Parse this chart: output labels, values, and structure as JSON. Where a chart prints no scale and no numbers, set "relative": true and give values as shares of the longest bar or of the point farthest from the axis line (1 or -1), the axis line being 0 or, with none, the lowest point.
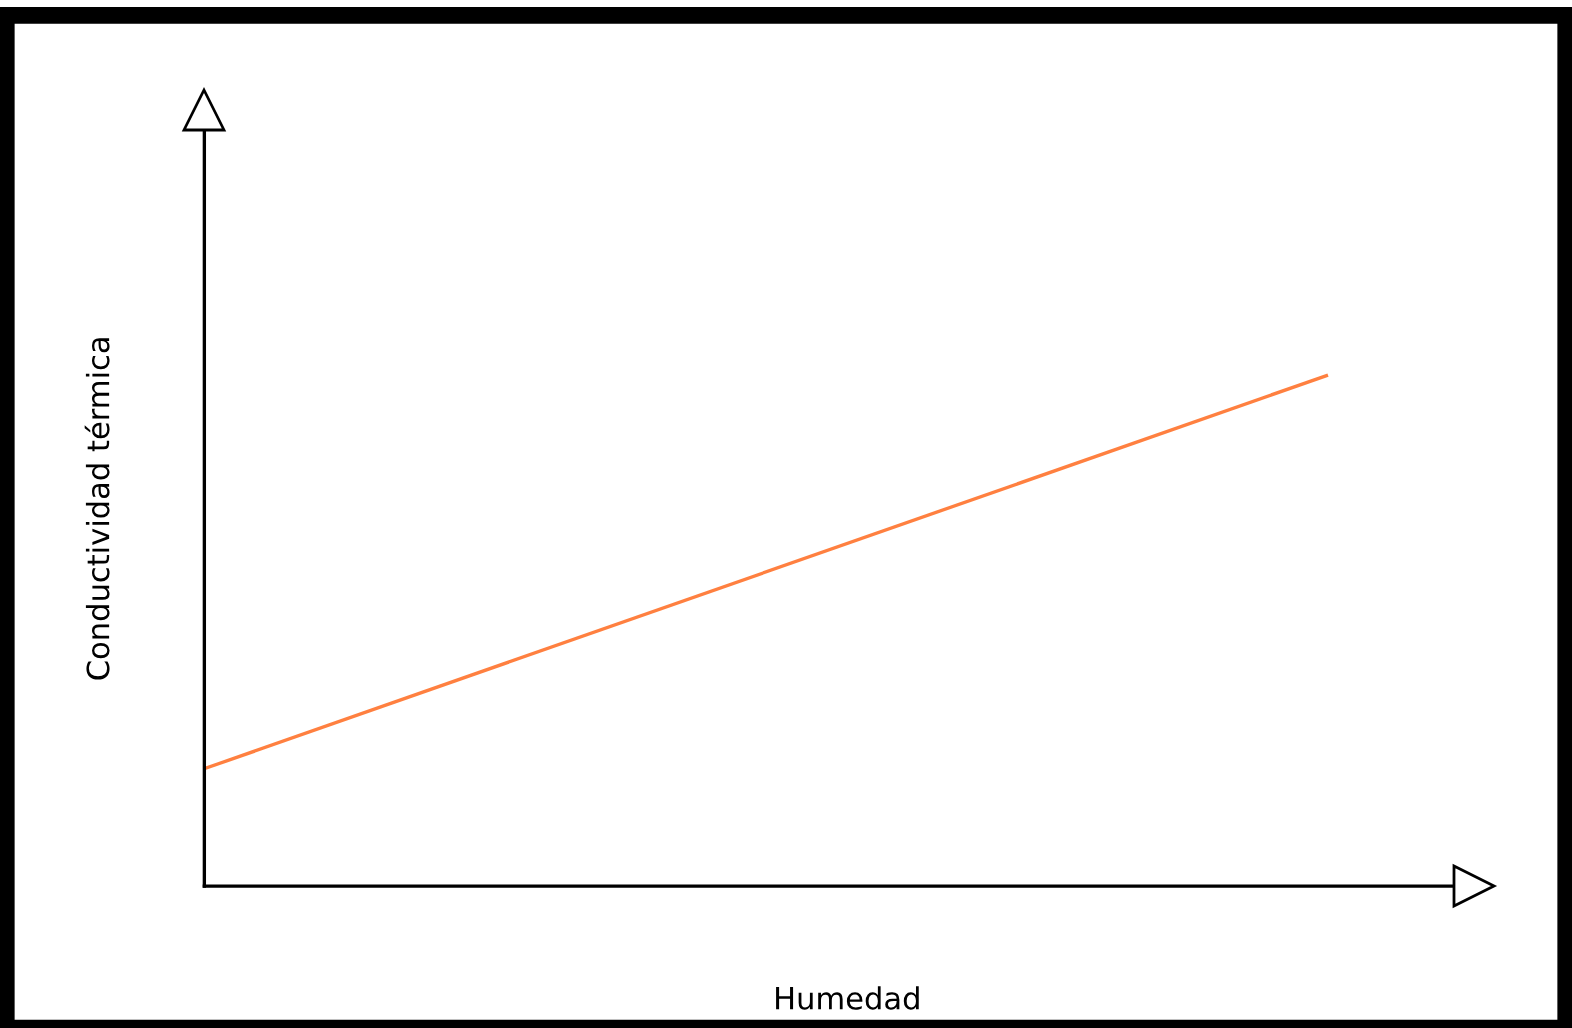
{
  "chart_data": {
    "type": "line",
    "relative": true,
    "xlabel": "Humedad",
    "ylabel": "Conductividad térmica",
    "categories": [
      null,
      null
    ],
    "series": [
      {
        "color": "#ff8040",
        "values": [
          0.23,
          1
        ]
      }
    ],
    "tick_labels": false,
    "marker": "none",
    "line_style": "solid"
  }
}
